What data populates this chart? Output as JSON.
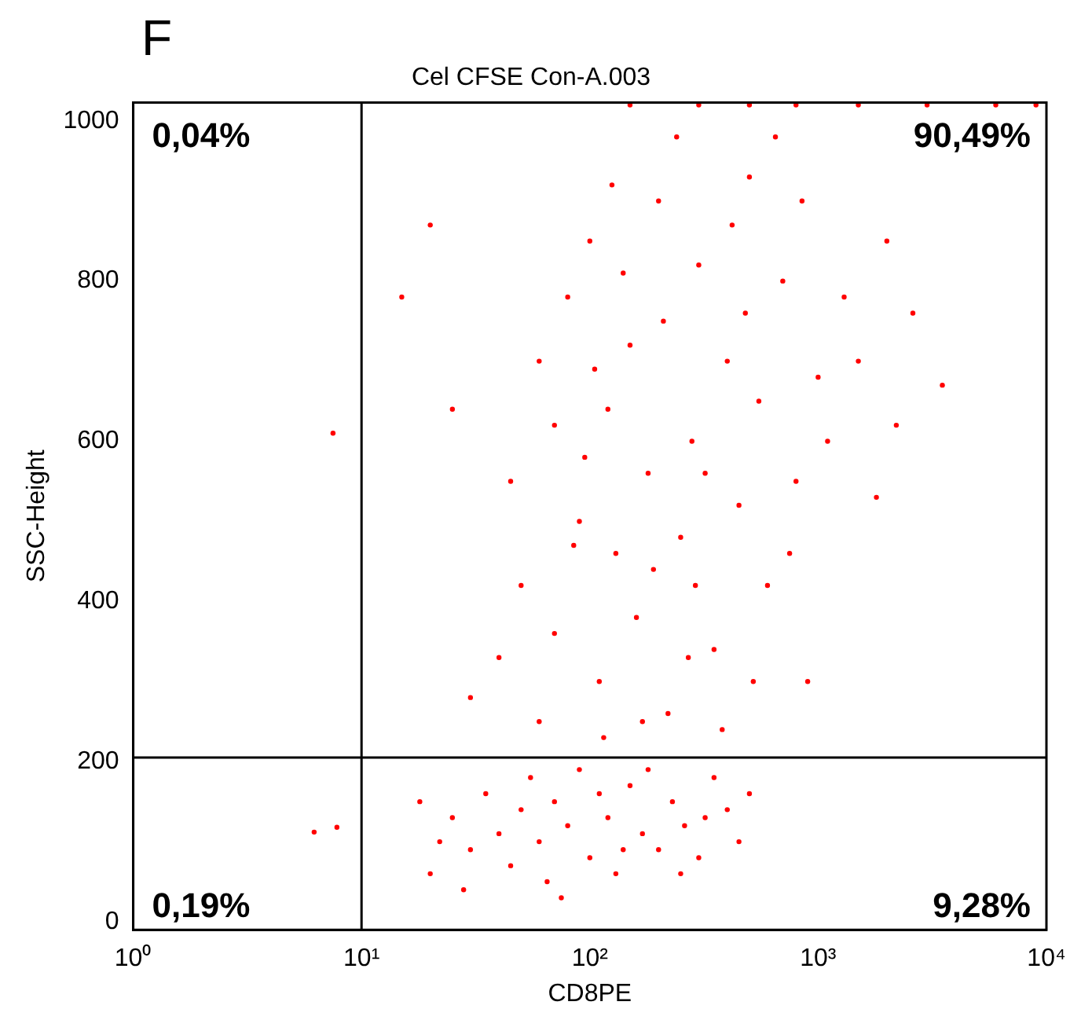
{
  "chart_data": {
    "type": "scatter",
    "title": "Cel CFSE Con-A.003",
    "xlabel": "CD8PE",
    "ylabel": "SSC-Height",
    "log": "x",
    "xlim": [
      1,
      10000
    ],
    "xticks": [
      {
        "value": 1,
        "label": "10⁰"
      },
      {
        "value": 10,
        "label": "10¹"
      },
      {
        "value": 100,
        "label": "10²"
      },
      {
        "value": 1000,
        "label": "10³"
      },
      {
        "value": 10000,
        "label": "10⁴"
      }
    ],
    "ylim": [
      -10,
      1023
    ],
    "yticks": [
      0,
      200,
      400,
      600,
      800,
      1000
    ],
    "grid": false,
    "legend": false,
    "marker": "circle",
    "series": [
      {
        "color": "#ff0000",
        "x": [
          20,
          25,
          30,
          35,
          40,
          45,
          50,
          55,
          60,
          65,
          70,
          80,
          90,
          100,
          110,
          120,
          130,
          150,
          170,
          200,
          230,
          260,
          300,
          350,
          400,
          450,
          500,
          18,
          22,
          28,
          75,
          180,
          140,
          250,
          320,
          30,
          40,
          50,
          45,
          60,
          70,
          80,
          90,
          100,
          110,
          120,
          130,
          150,
          160,
          180,
          200,
          220,
          250,
          280,
          300,
          350,
          400,
          450,
          500,
          550,
          600,
          700,
          800,
          900,
          1000,
          60,
          70,
          85,
          95,
          105,
          115,
          125,
          140,
          170,
          190,
          210,
          240,
          270,
          290,
          320,
          380,
          420,
          480,
          520,
          650,
          750,
          850,
          1100,
          1300,
          1500,
          2000,
          1800,
          2600,
          3500,
          2200,
          25,
          20,
          15,
          150,
          300,
          500,
          800,
          1500,
          3000,
          6000,
          9000,
          7.5,
          6.2,
          7.8
        ],
        "values": [
          60,
          130,
          90,
          160,
          110,
          70,
          140,
          180,
          100,
          50,
          150,
          120,
          190,
          80,
          160,
          130,
          60,
          170,
          110,
          90,
          150,
          120,
          80,
          180,
          140,
          100,
          160,
          150,
          100,
          40,
          30,
          190,
          90,
          60,
          130,
          280,
          330,
          420,
          550,
          700,
          620,
          780,
          500,
          850,
          300,
          640,
          460,
          720,
          380,
          560,
          900,
          260,
          480,
          600,
          820,
          340,
          700,
          520,
          930,
          650,
          420,
          800,
          550,
          300,
          680,
          250,
          360,
          470,
          580,
          690,
          230,
          920,
          810,
          250,
          440,
          750,
          980,
          330,
          420,
          560,
          240,
          870,
          760,
          300,
          980,
          460,
          900,
          600,
          780,
          700,
          850,
          530,
          760,
          670,
          620,
          640,
          870,
          780,
          1020,
          1020,
          1020,
          1020,
          1020,
          1020,
          1020,
          1020,
          610,
          112,
          118
        ]
      }
    ],
    "ref_lines": [
      {
        "axis": "x",
        "value": 10,
        "color": "#000000"
      },
      {
        "axis": "y",
        "value": 205,
        "color": "#000000"
      }
    ],
    "annotations": [
      "F",
      "0,04%",
      "90,49%",
      "0,19%",
      "9,28%"
    ]
  }
}
